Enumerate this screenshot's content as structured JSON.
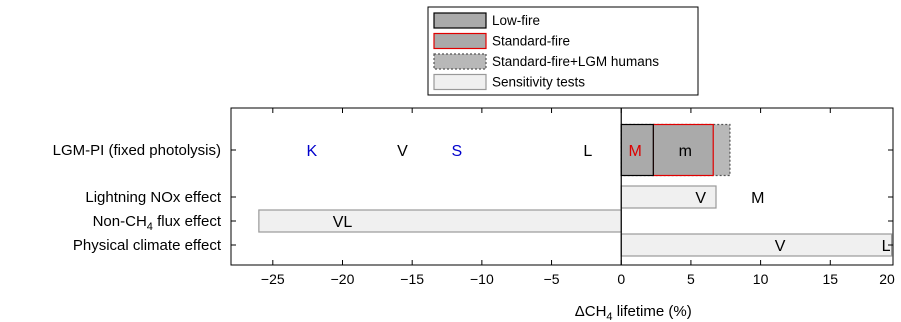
{
  "chart_data": {
    "type": "bar",
    "orientation": "horizontal",
    "title": "",
    "xlabel": "ΔCH",
    "xlabel_sub": "4",
    "xlabel_suffix": " lifetime (%)",
    "xlim": [
      -28,
      19.5
    ],
    "xticks": [
      -25,
      -20,
      -15,
      -10,
      -5,
      0,
      5,
      10,
      15
    ],
    "xtick_labels": [
      "−25",
      "−20",
      "−15",
      "−10",
      "−5",
      "0",
      "5",
      "10",
      "15"
    ],
    "extra_tick_label": "20",
    "rows": [
      {
        "key": "lgm",
        "label": "LGM-PI (fixed photolysis)"
      },
      {
        "key": "lightning",
        "label": "Lightning NOx effect"
      },
      {
        "key": "nonch4",
        "label": "Non-CH",
        "label_sub": "4",
        "label_suffix": " flux effect"
      },
      {
        "key": "climate",
        "label": "Physical climate effect"
      }
    ],
    "legend": {
      "placement": "top-center",
      "entries": [
        {
          "label": "Low-fire",
          "style": "low"
        },
        {
          "label": "Standard-fire",
          "style": "standard"
        },
        {
          "label": "Standard-fire+LGM humans",
          "style": "humans"
        },
        {
          "label": "Sensitivity tests",
          "style": "sens"
        }
      ]
    },
    "series": [
      {
        "style": "humans",
        "row": "lgm",
        "start": 0,
        "end": 7.8
      },
      {
        "style": "standard",
        "row": "lgm",
        "start": 2.3,
        "end": 6.6
      },
      {
        "style": "low",
        "row": "lgm",
        "start": 0,
        "end": 2.3
      },
      {
        "style": "sens",
        "row": "lightning",
        "start": 0,
        "end": 6.8
      },
      {
        "style": "sens",
        "row": "nonch4",
        "start": -26,
        "end": 0
      },
      {
        "style": "sens",
        "row": "climate",
        "start": 0,
        "end": 19.4
      }
    ],
    "point_labels": [
      {
        "text": "K",
        "row": "lgm",
        "x": -22.2,
        "color": "#0000cc"
      },
      {
        "text": "V",
        "row": "lgm",
        "x": -15.7,
        "color": "#000000"
      },
      {
        "text": "S",
        "row": "lgm",
        "x": -11.8,
        "color": "#0000cc"
      },
      {
        "text": "L",
        "row": "lgm",
        "x": -2.4,
        "color": "#000000"
      },
      {
        "text": "M",
        "row": "lgm",
        "x": 1.0,
        "color": "#dd0000"
      },
      {
        "text": "m",
        "row": "lgm",
        "x": 4.6,
        "color": "#000000"
      },
      {
        "text": "V",
        "row": "lightning",
        "x": 5.7,
        "color": "#000000"
      },
      {
        "text": "M",
        "row": "lightning",
        "x": 9.8,
        "color": "#000000"
      },
      {
        "text": "VL",
        "row": "nonch4",
        "x": -20.0,
        "color": "#000000"
      },
      {
        "text": "V",
        "row": "climate",
        "x": 11.4,
        "color": "#000000"
      },
      {
        "text": "L",
        "row": "climate",
        "x": 19.0,
        "color": "#000000"
      }
    ],
    "colors": {
      "low_fill": "#aaaaaa",
      "low_stroke": "#000000",
      "standard_fill": "#aaaaaa",
      "standard_stroke": "#e00000",
      "humans_fill": "#b8b8b8",
      "humans_stroke": "#555555",
      "sens_fill": "#f0f0f0",
      "sens_stroke": "#999999"
    }
  }
}
